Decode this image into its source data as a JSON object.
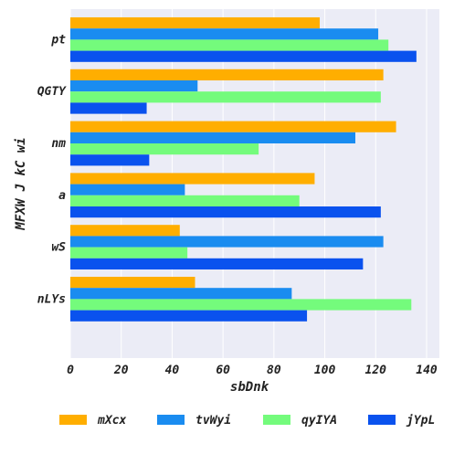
{
  "chart_data": {
    "type": "bar",
    "orientation": "horizontal",
    "title": "",
    "xlabel": "sbDnk",
    "ylabel": "MFXW J kC wi",
    "xlim": [
      0,
      140
    ],
    "xticks": [
      0,
      20,
      40,
      60,
      80,
      100,
      120,
      140
    ],
    "categories": [
      "pt",
      "QGTY",
      "nm",
      "a",
      "wS",
      "nLYs"
    ],
    "series": [
      {
        "name": "mXcx",
        "color": "#FFAE00",
        "values": [
          98,
          123,
          128,
          96,
          43,
          49
        ]
      },
      {
        "name": "tvWyi",
        "color": "#1A8CF0",
        "values": [
          121,
          50,
          112,
          45,
          123,
          87
        ]
      },
      {
        "name": "qyIYA",
        "color": "#74FB7C",
        "values": [
          125,
          122,
          74,
          90,
          46,
          134
        ]
      },
      {
        "name": "jYpL",
        "color": "#0A52EE",
        "values": [
          136,
          30,
          31,
          122,
          115,
          93
        ]
      }
    ],
    "plot_background": "#EBECF6",
    "grid": true,
    "legend_position": "bottom"
  }
}
